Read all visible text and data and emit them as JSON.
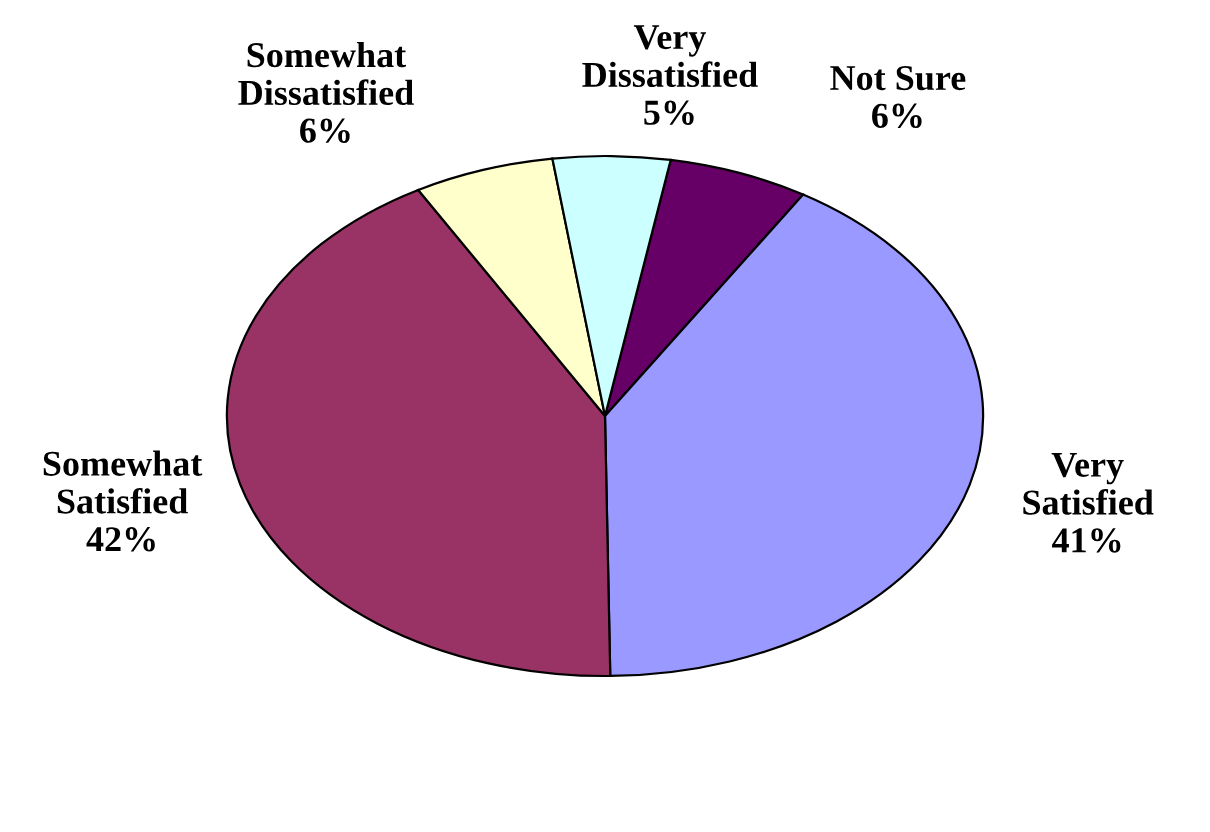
{
  "chart_data": {
    "type": "pie",
    "categories": [
      "Not Sure",
      "Very Satisfied",
      "Somewhat Satisfied",
      "Somewhat Dissatisfied",
      "Very Dissatisfied"
    ],
    "values": [
      6,
      41,
      42,
      6,
      5
    ],
    "value_labels": [
      "6%",
      "41%",
      "42%",
      "6%",
      "5%"
    ],
    "colors": [
      "#660066",
      "#9999ff",
      "#993366",
      "#ffffcc",
      "#ccffff"
    ],
    "legend": false
  }
}
